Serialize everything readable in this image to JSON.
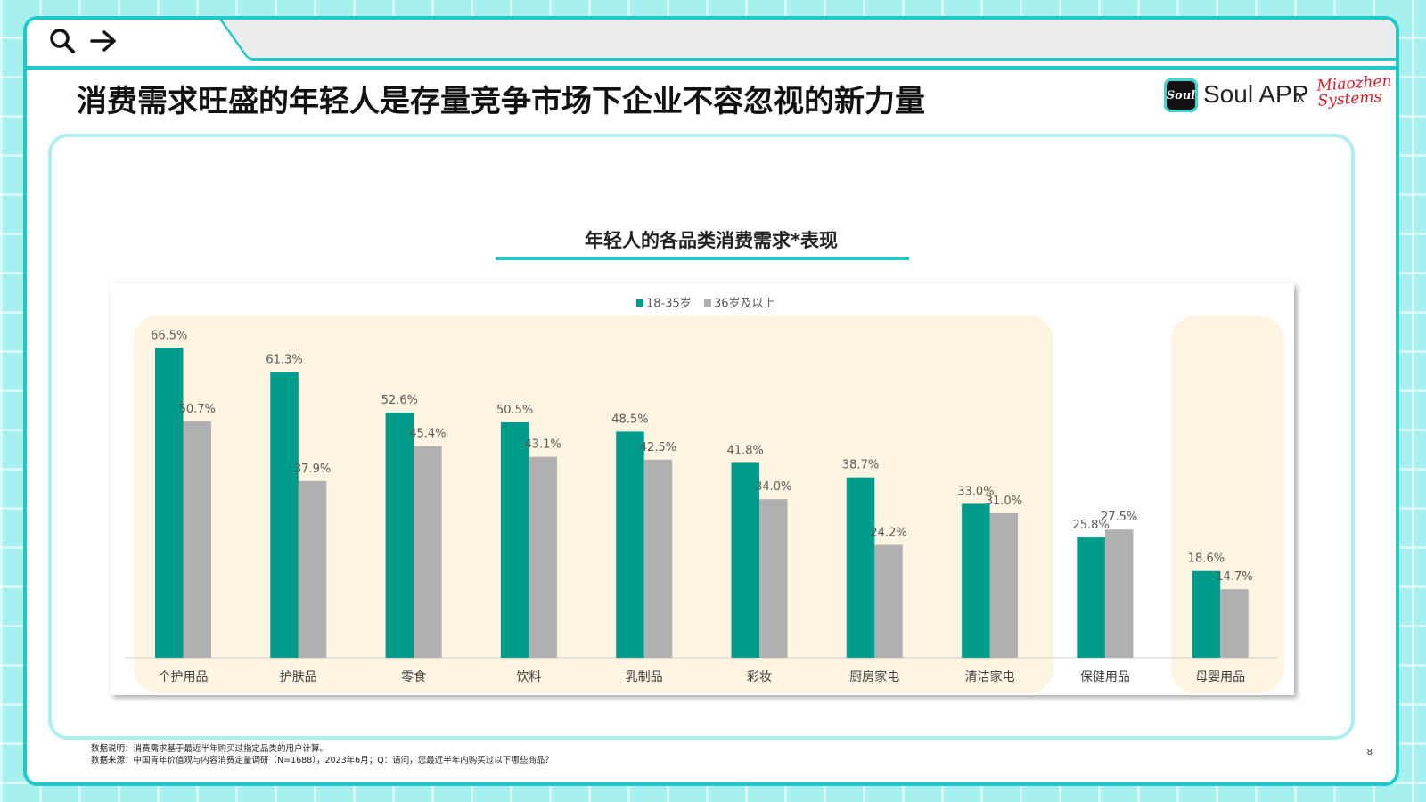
{
  "page": {
    "title": "消费需求旺盛的年轻人是存量竞争市场下企业不容忽视的新力量",
    "brand": {
      "soul_logo_text": "Soul",
      "soul_name": "Soul APP",
      "separator": "x",
      "partner": "Miaozhen Systems"
    },
    "chart_heading": "年轻人的各品类消费需求*表现",
    "note_line1": "数据说明：消费需求基于最近半年购买过指定品类的用户计算。",
    "note_line2": "数据来源：中国青年价值观与内容消费定量调研（N=1688），2023年6月；Q：请问，您最近半年内购买过以下哪些商品？",
    "page_number": "8"
  },
  "colors": {
    "accent": "#1ec9c9",
    "series1": "#009b8a",
    "series2": "#b0b0b0",
    "highlight": "#fdf5e2"
  },
  "icons": [
    "search-icon",
    "arrow-right-icon"
  ],
  "chart_data": {
    "type": "bar",
    "categories": [
      "个护用品",
      "护肤品",
      "零食",
      "饮料",
      "乳制品",
      "彩妆",
      "厨房家电",
      "清洁家电",
      "保健用品",
      "母婴用品"
    ],
    "series": [
      {
        "name": "18-35岁",
        "values": [
          66.5,
          61.3,
          52.6,
          50.5,
          48.5,
          41.8,
          38.7,
          33.0,
          25.8,
          18.6
        ],
        "labels": [
          "66.5%",
          "61.3%",
          "52.6%",
          "50.5%",
          "48.5%",
          "41.8%",
          "38.7%",
          "33.0%",
          "25.8%",
          "18.6%"
        ]
      },
      {
        "name": "36岁及以上",
        "values": [
          50.7,
          37.9,
          45.4,
          43.1,
          42.5,
          34.0,
          24.2,
          31.0,
          27.5,
          14.7
        ],
        "labels": [
          "50.7%",
          "37.9%",
          "45.4%",
          "43.1%",
          "42.5%",
          "34.0%",
          "24.2%",
          "31.0%",
          "27.5%",
          "14.7%"
        ]
      }
    ],
    "legend_position": "top-center",
    "highlighted_groups": [
      [
        "个护用品",
        "清洁家电"
      ],
      [
        "母婴用品",
        "母婴用品"
      ]
    ],
    "ylim": [
      0,
      70
    ],
    "grid": false
  }
}
